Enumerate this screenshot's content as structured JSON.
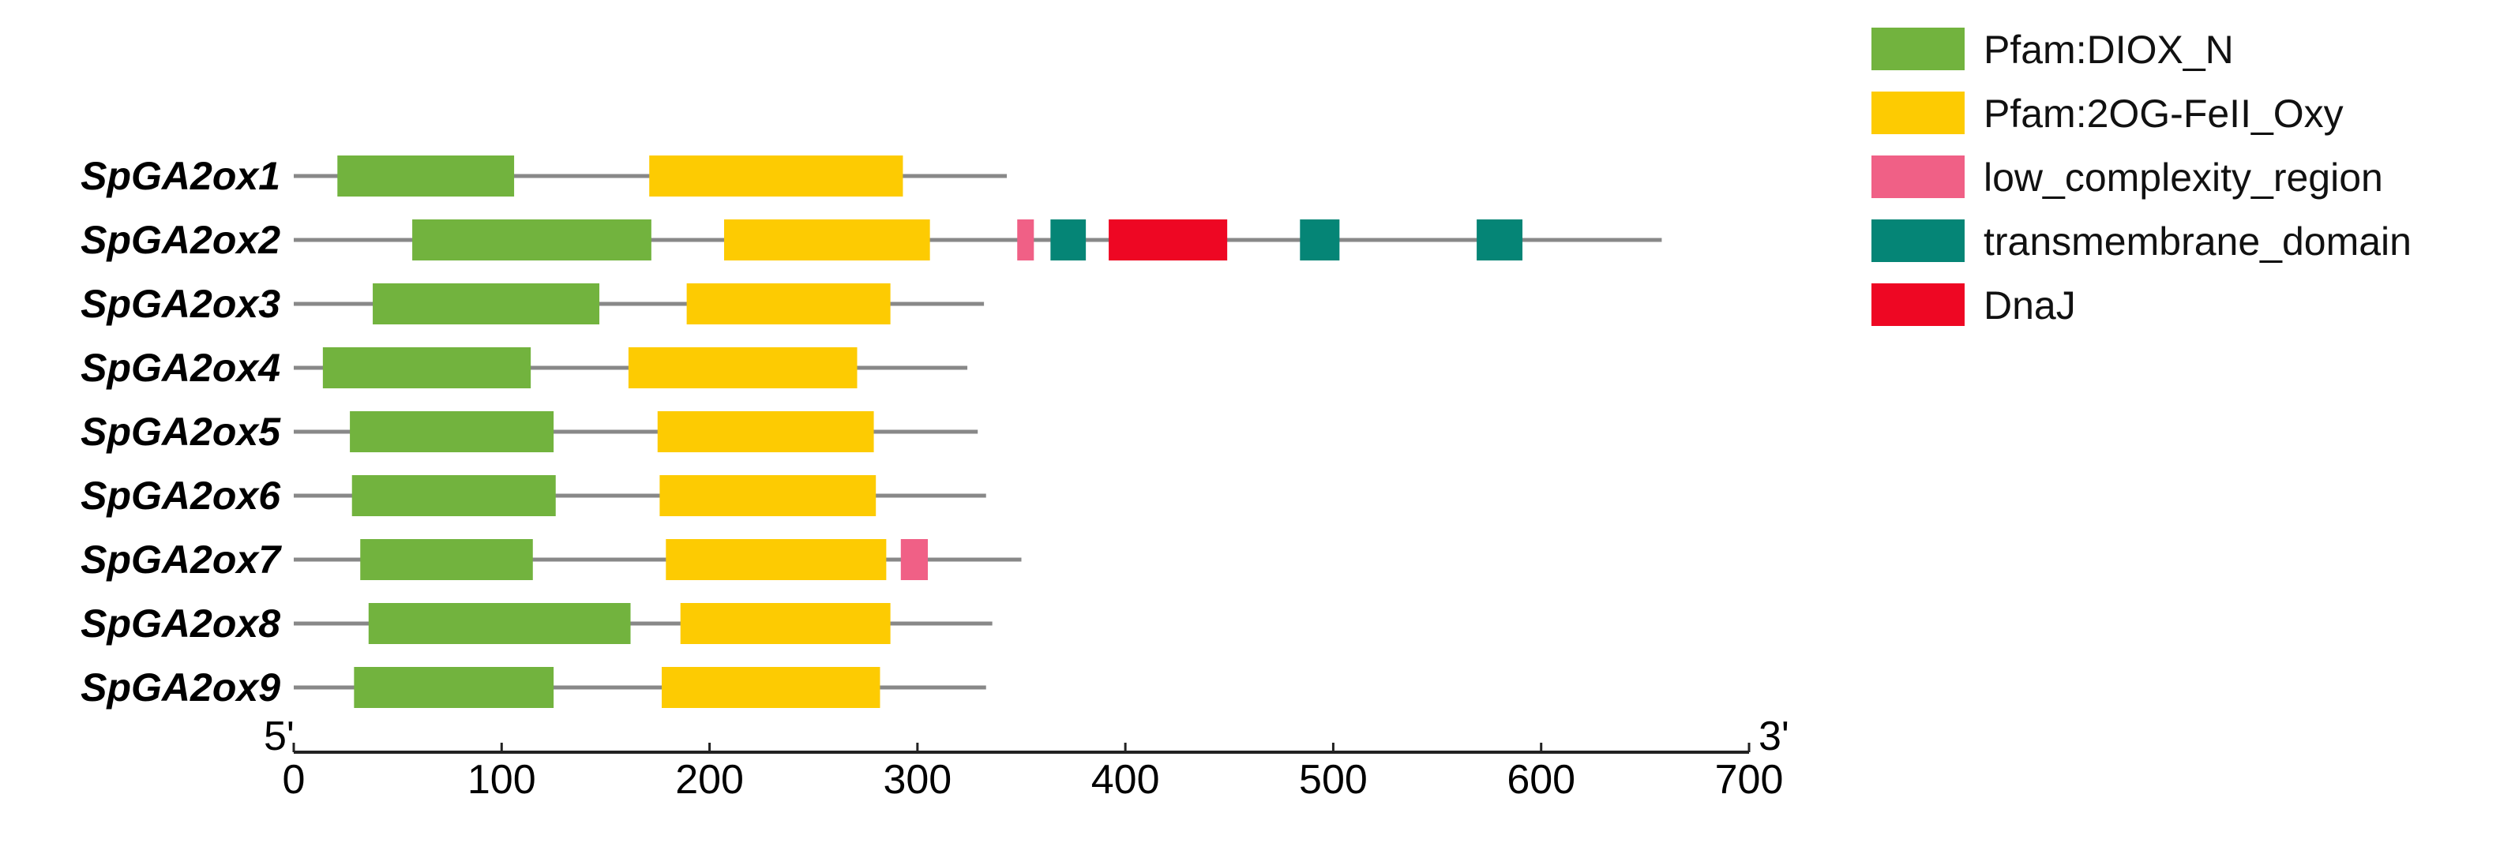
{
  "chart_data": {
    "type": "gene-domain-structure",
    "axis": {
      "ticks": [
        0,
        100,
        200,
        300,
        400,
        500,
        600,
        700
      ],
      "range": [
        0,
        700
      ],
      "start_label": "5'",
      "end_label": "3'"
    },
    "domain_types": [
      {
        "id": "dioxn",
        "label": "Pfam:DIOX_N",
        "color": "#72b33e"
      },
      {
        "id": "oxy",
        "label": "Pfam:2OG-FeII_Oxy",
        "color": "#fdcb02"
      },
      {
        "id": "lowc",
        "label": "low_complexity_region",
        "color": "#f06086"
      },
      {
        "id": "tm",
        "label": "transmembrane_domain",
        "color": "#058576"
      },
      {
        "id": "dnaj",
        "label": "DnaJ",
        "color": "#ee0723"
      }
    ],
    "genes": [
      {
        "name": "SpGA2ox1",
        "length": 343,
        "domains": [
          {
            "type": "dioxn",
            "start": 21,
            "end": 106
          },
          {
            "type": "oxy",
            "start": 171,
            "end": 293
          }
        ]
      },
      {
        "name": "SpGA2ox2",
        "length": 658,
        "domains": [
          {
            "type": "dioxn",
            "start": 57,
            "end": 172
          },
          {
            "type": "oxy",
            "start": 207,
            "end": 306
          },
          {
            "type": "lowc",
            "start": 348,
            "end": 356
          },
          {
            "type": "tm",
            "start": 364,
            "end": 381
          },
          {
            "type": "dnaj",
            "start": 392,
            "end": 449
          },
          {
            "type": "tm",
            "start": 484,
            "end": 503
          },
          {
            "type": "tm",
            "start": 569,
            "end": 591
          }
        ]
      },
      {
        "name": "SpGA2ox3",
        "length": 332,
        "domains": [
          {
            "type": "dioxn",
            "start": 38,
            "end": 147
          },
          {
            "type": "oxy",
            "start": 189,
            "end": 287
          }
        ]
      },
      {
        "name": "SpGA2ox4",
        "length": 324,
        "domains": [
          {
            "type": "dioxn",
            "start": 14,
            "end": 114
          },
          {
            "type": "oxy",
            "start": 161,
            "end": 271
          }
        ]
      },
      {
        "name": "SpGA2ox5",
        "length": 329,
        "domains": [
          {
            "type": "dioxn",
            "start": 27,
            "end": 125
          },
          {
            "type": "oxy",
            "start": 175,
            "end": 279
          }
        ]
      },
      {
        "name": "SpGA2ox6",
        "length": 333,
        "domains": [
          {
            "type": "dioxn",
            "start": 28,
            "end": 126
          },
          {
            "type": "oxy",
            "start": 176,
            "end": 280
          }
        ]
      },
      {
        "name": "SpGA2ox7",
        "length": 350,
        "domains": [
          {
            "type": "dioxn",
            "start": 32,
            "end": 115
          },
          {
            "type": "oxy",
            "start": 179,
            "end": 285
          },
          {
            "type": "lowc",
            "start": 292,
            "end": 305
          }
        ]
      },
      {
        "name": "SpGA2ox8",
        "length": 336,
        "domains": [
          {
            "type": "dioxn",
            "start": 36,
            "end": 162
          },
          {
            "type": "oxy",
            "start": 186,
            "end": 287
          }
        ]
      },
      {
        "name": "SpGA2ox9",
        "length": 333,
        "domains": [
          {
            "type": "dioxn",
            "start": 29,
            "end": 125
          },
          {
            "type": "oxy",
            "start": 177,
            "end": 282
          }
        ]
      }
    ]
  }
}
